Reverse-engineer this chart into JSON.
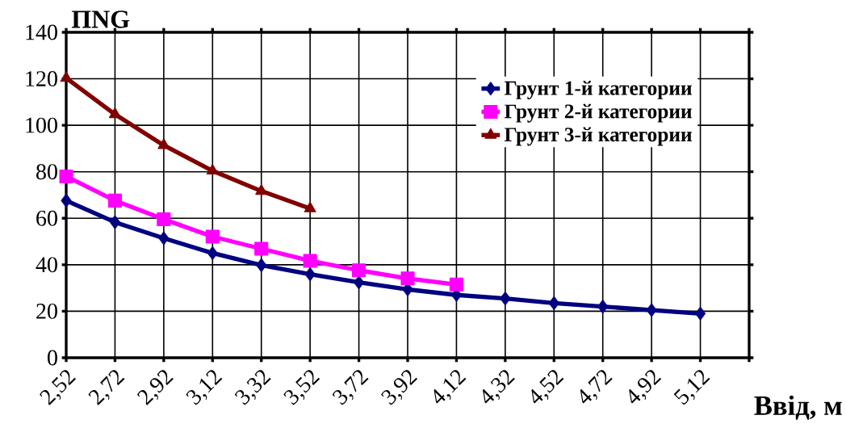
{
  "chart_data": {
    "type": "line",
    "ylabel": "ПNG",
    "xlabel": "Ввід, м",
    "categories": [
      "2,52",
      "2,72",
      "2,92",
      "3,12",
      "3,32",
      "3,52",
      "3,72",
      "3,92",
      "4,12",
      "4,32",
      "4,52",
      "4,72",
      "4,92",
      "5,12",
      null
    ],
    "series": [
      {
        "name": "Грунт 1-й категории",
        "color": "#000080",
        "marker": "diamond",
        "values": [
          67.6,
          58.3,
          51.4,
          45,
          39.8,
          35.9,
          32.4,
          29.4,
          27,
          25.5,
          23.5,
          22,
          20.5,
          19,
          null
        ]
      },
      {
        "name": "Грунт 2-й категории",
        "color": "#ff00ff",
        "marker": "square",
        "values": [
          78,
          67.6,
          59.6,
          52.1,
          46.9,
          41.7,
          37.6,
          34.1,
          31.5,
          null,
          null,
          null,
          null,
          null,
          null
        ]
      },
      {
        "name": "Грунт 3-й категории",
        "color": "#800000",
        "marker": "triangle",
        "values": [
          120.3,
          104.7,
          91.4,
          80.4,
          71.7,
          64.2,
          null,
          null,
          null,
          null,
          null,
          null,
          null,
          null,
          null
        ]
      }
    ],
    "ylim": [
      0,
      140
    ],
    "yticks": [
      0,
      20,
      40,
      60,
      80,
      100,
      120,
      140
    ],
    "grid": true,
    "legend": "top right"
  }
}
